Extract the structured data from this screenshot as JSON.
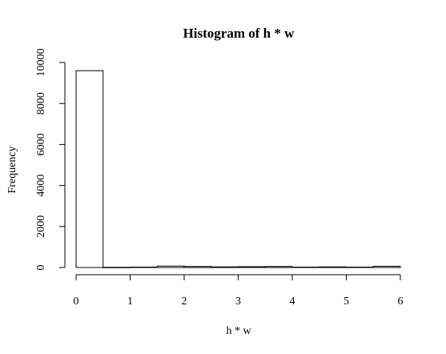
{
  "chart_data": {
    "type": "bar",
    "title": "Histogram of h * w",
    "xlabel": "h * w",
    "ylabel": "Frequency",
    "bin_edges": [
      0,
      0.5,
      1,
      1.5,
      2,
      2.5,
      3,
      3.5,
      4,
      4.5,
      5,
      5.5,
      6
    ],
    "values": [
      9600,
      10,
      20,
      70,
      50,
      30,
      40,
      50,
      20,
      30,
      20,
      60
    ],
    "xlim": [
      0,
      6
    ],
    "ylim": [
      0,
      10000
    ],
    "x_ticks": [
      0,
      1,
      2,
      3,
      4,
      5,
      6
    ],
    "x_tick_labels": [
      "0",
      "1",
      "2",
      "3",
      "4",
      "5",
      "6"
    ],
    "y_ticks": [
      0,
      2000,
      4000,
      6000,
      8000,
      10000
    ],
    "y_tick_labels": [
      "0",
      "2000",
      "4000",
      "6000",
      "8000",
      "10000"
    ],
    "grid": false,
    "colors": {
      "bar_fill": "#ffffff",
      "bar_stroke": "#000000"
    }
  }
}
